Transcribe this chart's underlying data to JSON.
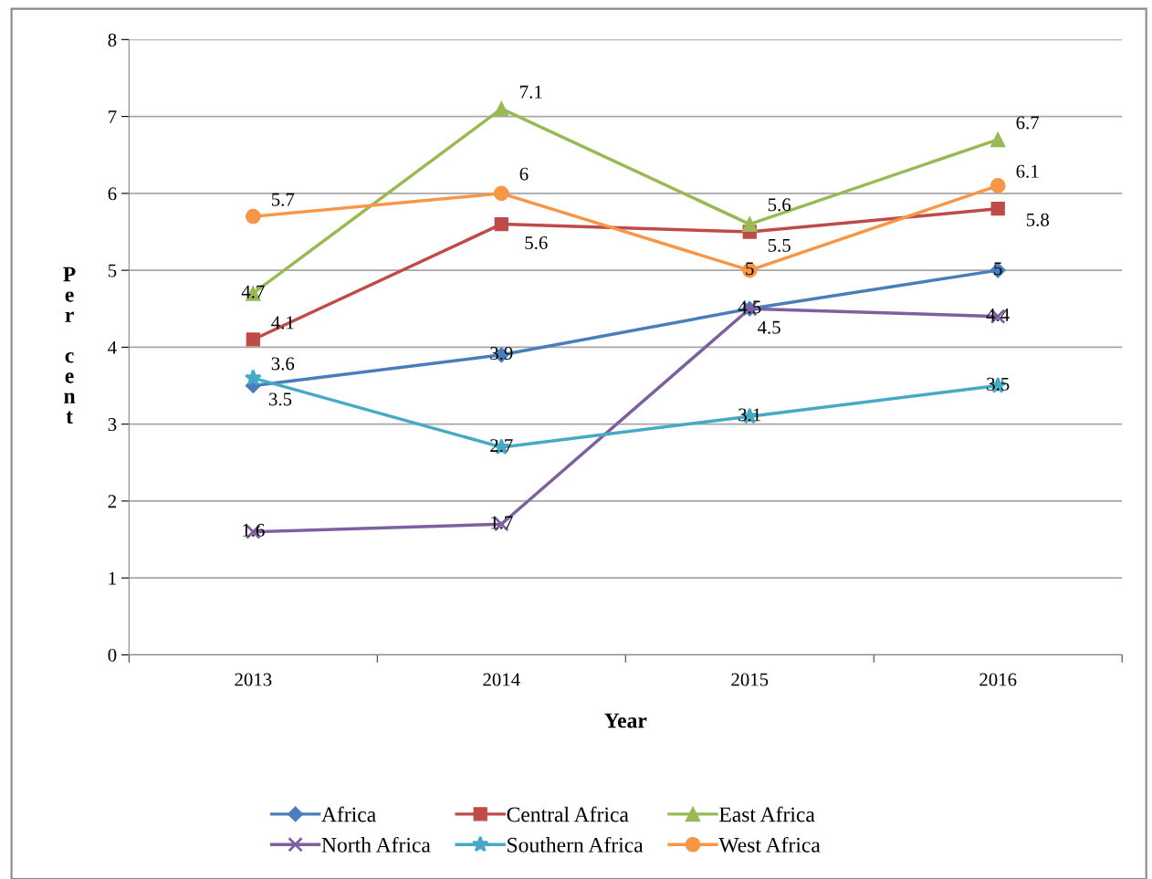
{
  "chart_data": {
    "type": "line",
    "xlabel": "Year",
    "ylabel": "Per cent",
    "categories": [
      "2013",
      "2014",
      "2015",
      "2016"
    ],
    "series": [
      {
        "name": "Africa",
        "color": "#4a7ebb",
        "marker": "diamond",
        "values": [
          3.5,
          3.9,
          4.5,
          5
        ]
      },
      {
        "name": "Central Africa",
        "color": "#be4b48",
        "marker": "square",
        "values": [
          4.1,
          5.6,
          5.5,
          5.8
        ]
      },
      {
        "name": "East Africa",
        "color": "#98b954",
        "marker": "triangle",
        "values": [
          4.7,
          7.1,
          5.6,
          6.7
        ]
      },
      {
        "name": "North Africa",
        "color": "#7d60a0",
        "marker": "cross",
        "values": [
          1.6,
          1.7,
          4.5,
          4.4
        ]
      },
      {
        "name": "Southern Africa",
        "color": "#46aac5",
        "marker": "star",
        "values": [
          3.6,
          2.7,
          3.1,
          3.5
        ]
      },
      {
        "name": "West Africa",
        "color": "#f79646",
        "marker": "circle",
        "values": [
          5.7,
          6,
          5,
          6.1
        ]
      }
    ],
    "ylim": [
      0,
      8
    ],
    "yticks": [
      0,
      1,
      2,
      3,
      4,
      5,
      6,
      7,
      8
    ],
    "grid": "y",
    "legend": "bottom",
    "data_labels": true,
    "line_style": "solid"
  }
}
